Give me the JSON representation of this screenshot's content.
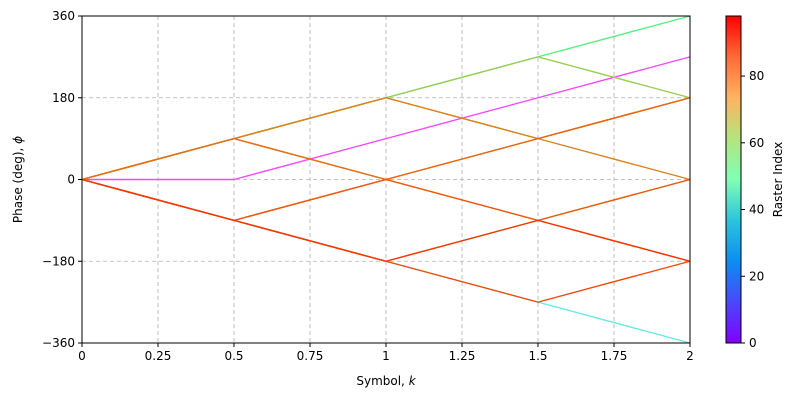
{
  "chart_data": {
    "type": "line",
    "xlabel": "Symbol, ",
    "xlabel_var": "k",
    "ylabel": "Phase (deg), ",
    "ylabel_var": "ϕ",
    "xlim": [
      0,
      2
    ],
    "ylim": [
      -360,
      360
    ],
    "x_ticks": [
      0,
      0.25,
      0.5,
      0.75,
      1,
      1.25,
      1.5,
      1.75,
      2
    ],
    "x_tick_labels": [
      "0",
      "0.25",
      "0.5",
      "0.75",
      "1",
      "1.25",
      "1.5",
      "1.75",
      "2"
    ],
    "y_ticks": [
      -360,
      -180,
      0,
      180,
      360
    ],
    "y_tick_labels": [
      "−360",
      "−180",
      "0",
      "180",
      "360"
    ],
    "grid": true,
    "colorbar": {
      "label": "Raster Index",
      "range": [
        0,
        98
      ],
      "ticks": [
        0,
        20,
        40,
        60,
        80
      ],
      "tick_labels": [
        "0",
        "20",
        "40",
        "60",
        "80"
      ],
      "colormap": "rainbow"
    },
    "series": [
      {
        "color_value": 2,
        "x": [
          0,
          0.5,
          1,
          1.5,
          2
        ],
        "y": [
          0,
          0,
          90,
          180,
          270
        ]
      },
      {
        "color_value": 30,
        "x": [
          0,
          0.5,
          1,
          1.5,
          2
        ],
        "y": [
          0,
          -90,
          -180,
          -270,
          -360
        ]
      },
      {
        "color_value": 65,
        "x": [
          0,
          0.5,
          1,
          1.5,
          2
        ],
        "y": [
          0,
          90,
          180,
          270,
          360
        ]
      },
      {
        "color_value": 78,
        "x": [
          0,
          0.5,
          1,
          1.5,
          2
        ],
        "y": [
          0,
          90,
          180,
          270,
          180
        ]
      },
      {
        "color_value": 80,
        "x": [
          0,
          0.5,
          1,
          1.5,
          2
        ],
        "y": [
          0,
          -90,
          -180,
          -90,
          0
        ]
      },
      {
        "color_value": 90,
        "x": [
          0,
          0.5,
          1,
          1.5,
          2
        ],
        "y": [
          0,
          90,
          180,
          90,
          180
        ]
      },
      {
        "color_value": 91,
        "x": [
          0,
          0.5,
          1,
          1.5,
          2
        ],
        "y": [
          0,
          90,
          180,
          90,
          0
        ]
      },
      {
        "color_value": 92,
        "x": [
          0,
          0.5,
          1,
          1.5,
          2
        ],
        "y": [
          0,
          90,
          0,
          90,
          180
        ]
      },
      {
        "color_value": 93,
        "x": [
          0,
          0.5,
          1,
          1.5,
          2
        ],
        "y": [
          0,
          90,
          0,
          -90,
          -180
        ]
      },
      {
        "color_value": 94,
        "x": [
          0,
          0.5,
          1,
          1.5,
          2
        ],
        "y": [
          0,
          -90,
          0,
          90,
          180
        ]
      },
      {
        "color_value": 95,
        "x": [
          0,
          0.5,
          1,
          1.5,
          2
        ],
        "y": [
          0,
          -90,
          0,
          -90,
          0
        ]
      },
      {
        "color_value": 96,
        "x": [
          0,
          0.5,
          1,
          1.5,
          2
        ],
        "y": [
          0,
          -90,
          -180,
          -270,
          -180
        ]
      },
      {
        "color_value": 97,
        "x": [
          0,
          0.5,
          1,
          1.5,
          2
        ],
        "y": [
          0,
          -90,
          -180,
          -90,
          -180
        ]
      }
    ]
  }
}
